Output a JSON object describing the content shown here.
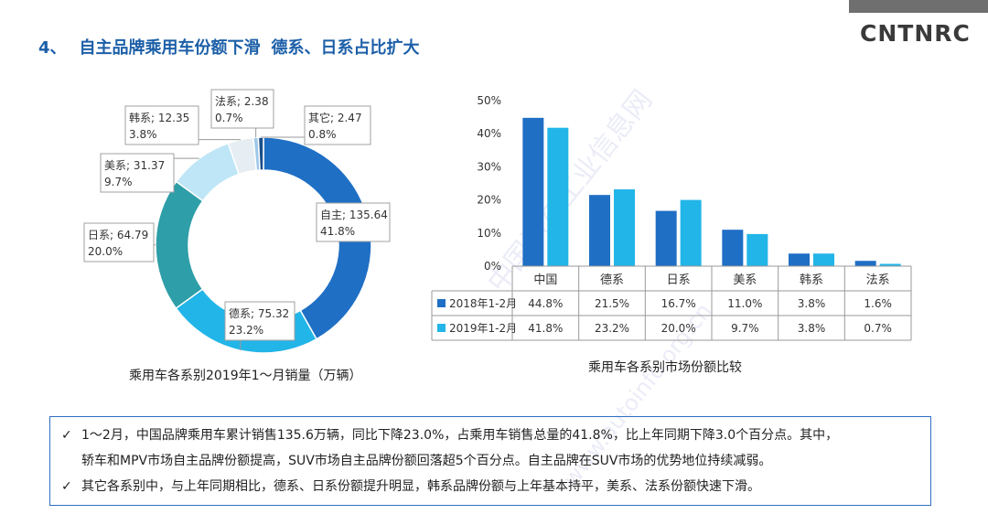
{
  "header": {
    "section_number": "4、",
    "title_part1": "自主品牌乘用车份额下滑",
    "title_part2": "德系、日系占比扩大",
    "logo_text": "CNTNRC"
  },
  "watermark": {
    "line1": "中国汽车工业信息网",
    "line2": "www.autoinfo.org.cn"
  },
  "chart_data": [
    {
      "type": "pie",
      "subtype": "donut",
      "title": "乘用车各系别2019年1～月销量（万辆）",
      "unit": "万辆",
      "slices": [
        {
          "name": "自主",
          "value": 135.64,
          "percent": "41.8%",
          "color": "#1f6fc5"
        },
        {
          "name": "德系",
          "value": 75.32,
          "percent": "23.2%",
          "color": "#22b5e8"
        },
        {
          "name": "日系",
          "value": 64.79,
          "percent": "20.0%",
          "color": "#2e9ea8"
        },
        {
          "name": "美系",
          "value": 31.37,
          "percent": "9.7%",
          "color": "#bfe6f7"
        },
        {
          "name": "韩系",
          "value": 12.35,
          "percent": "3.8%",
          "color": "#e6eef3"
        },
        {
          "name": "法系",
          "value": 2.38,
          "percent": "0.7%",
          "color": "#9ec8e8"
        },
        {
          "name": "其它",
          "value": 2.47,
          "percent": "0.8%",
          "color": "#1a4f8a"
        }
      ]
    },
    {
      "type": "bar",
      "title": "乘用车各系别市场份额比较",
      "categories": [
        "中国",
        "德系",
        "日系",
        "美系",
        "韩系",
        "法系"
      ],
      "yticks": [
        "0%",
        "10%",
        "20%",
        "30%",
        "40%",
        "50%"
      ],
      "ylim": [
        0,
        50
      ],
      "series": [
        {
          "name": "2018年1-2月",
          "values": [
            44.8,
            21.5,
            16.7,
            11.0,
            3.8,
            1.6
          ],
          "labels": [
            "44.8%",
            "21.5%",
            "16.7%",
            "11.0%",
            "3.8%",
            "1.6%"
          ],
          "color": "#1f6fc5"
        },
        {
          "name": "2019年1-2月",
          "values": [
            41.8,
            23.2,
            20.0,
            9.7,
            3.8,
            0.7
          ],
          "labels": [
            "41.8%",
            "23.2%",
            "20.0%",
            "9.7%",
            "3.8%",
            "0.7%"
          ],
          "color": "#22b5e8"
        }
      ]
    }
  ],
  "notes": {
    "check": "✓",
    "item1_line1": "1～2月，中国品牌乘用车累计销售135.6万辆，同比下降23.0%，占乘用车销售总量的41.8%，比上年同期下降3.0个百分点。其中，",
    "item1_line2": "轿车和MPV市场自主品牌份额提高，SUV市场自主品牌份额回落超5个百分点。自主品牌在SUV市场的优势地位持续减弱。",
    "item2": "其它各系别中，与上年同期相比，德系、日系份额提升明显，韩系品牌份额与上年基本持平，美系、法系份额快速下滑。"
  }
}
